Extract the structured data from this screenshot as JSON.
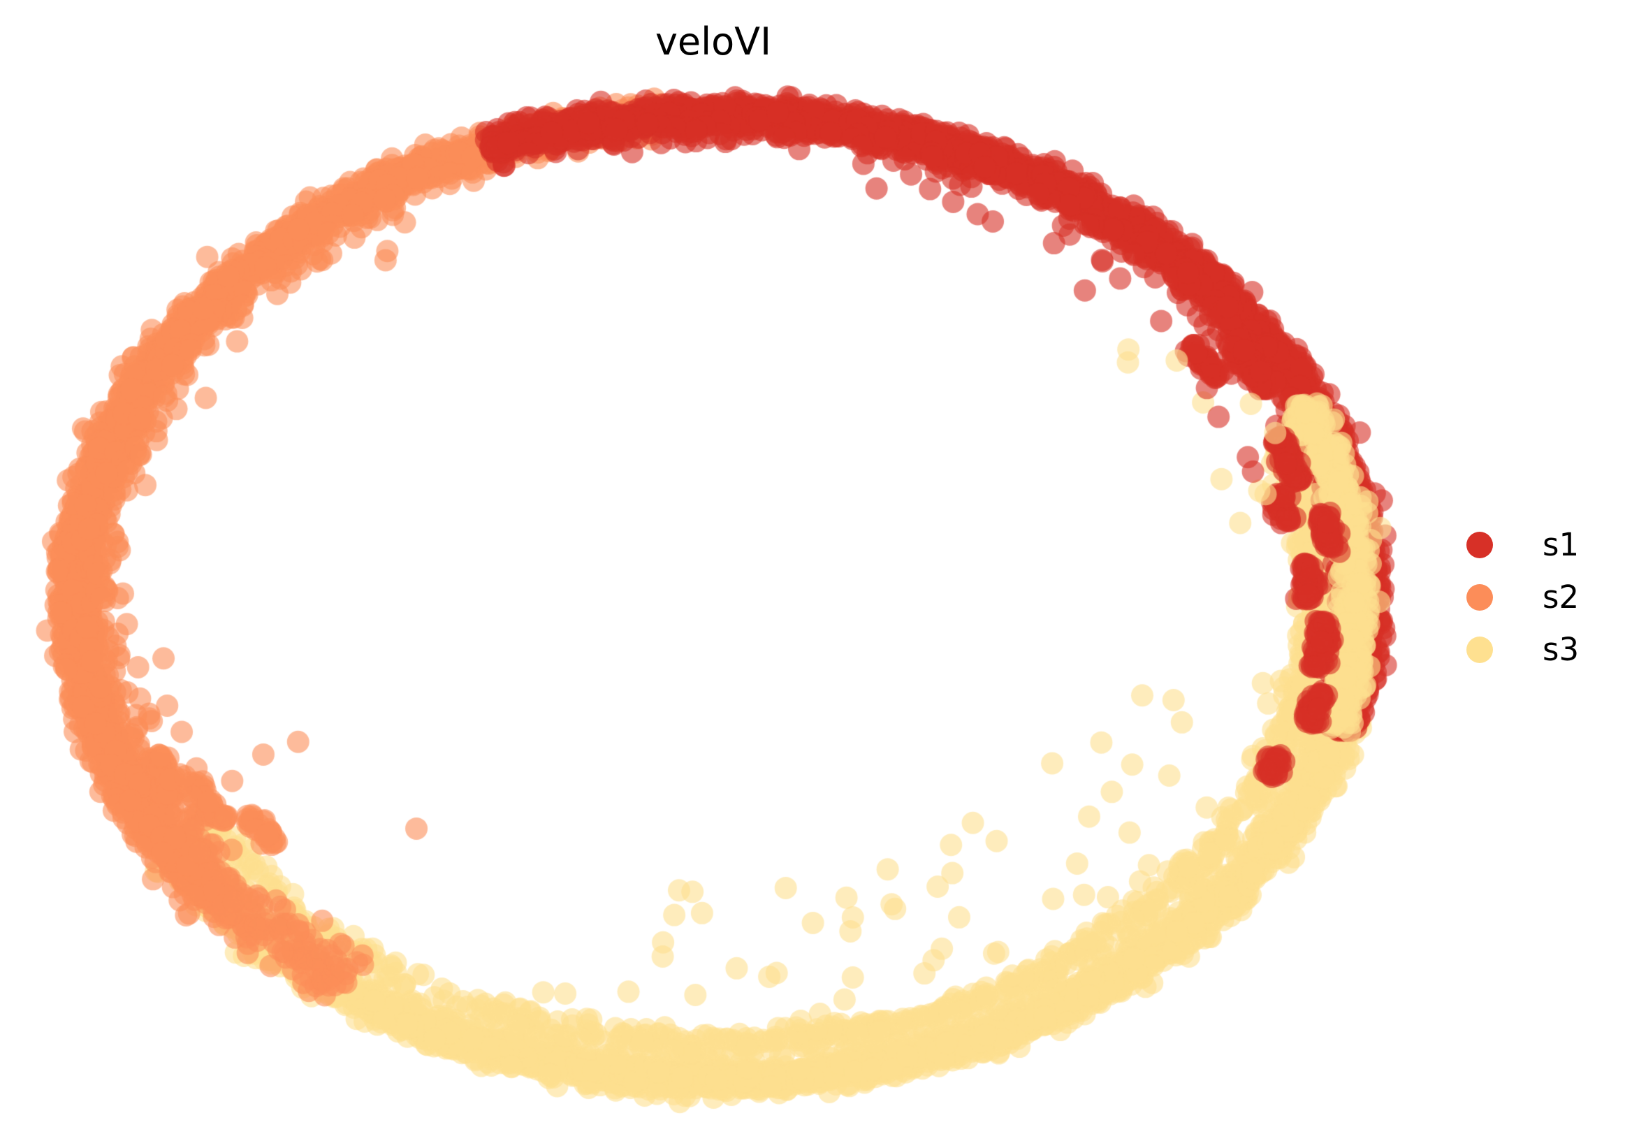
{
  "figure": {
    "title": "veloVI",
    "background": "#ffffff",
    "title_color": "#000000"
  },
  "legend": {
    "items": [
      {
        "label": "s1",
        "color": "#d73027"
      },
      {
        "label": "s2",
        "color": "#fc8d59"
      },
      {
        "label": "s3",
        "color": "#fee090"
      }
    ]
  },
  "chart_data": {
    "type": "scatter",
    "title": "veloVI",
    "legend_position": "right",
    "axes_visible": false,
    "grid": false,
    "description": "2D embedding scatter; ~12k cells forming a closed elliptical cycle, colored by stage: s1 (red) along the top and right, s2 (orange) along the left, s3 (yellow) along the bottom rising up the right side, with mixing at stage boundaries, inner secondary strands and sparse interior outliers.",
    "series": [
      {
        "name": "s1",
        "color": "#d73027"
      },
      {
        "name": "s2",
        "color": "#fc8d59"
      },
      {
        "name": "s3",
        "color": "#fee090"
      }
    ],
    "marker": {
      "radius_px": 16,
      "alpha": 0.6
    },
    "ellipse": {
      "cx": 1030,
      "cy": 855,
      "rx": 920,
      "ry": 690
    },
    "seed": 20240613,
    "bands": [
      {
        "series": "s3",
        "theta_deg": [
          -148,
          -14
        ],
        "n": 2900,
        "r_mean": 1.0,
        "r_sigma": 0.016
      },
      {
        "series": "s3",
        "theta_deg": [
          -150,
          -100
        ],
        "n": 160,
        "r_mean": 0.93,
        "r_sigma": 0.015
      },
      {
        "series": "s3",
        "theta_deg": [
          -100,
          20
        ],
        "n": 600,
        "r_mean": 0.925,
        "r_sigma": 0.012
      },
      {
        "series": "s2",
        "theta_deg": [
          95,
          220
        ],
        "n": 2700,
        "r_mean": 1.0,
        "r_sigma": 0.016
      },
      {
        "series": "s2",
        "theta_deg": [
          110,
          215
        ],
        "n": 260,
        "r_mean": 0.97,
        "r_sigma": 0.022
      },
      {
        "series": "s2",
        "theta_deg": [
          -158,
          -126
        ],
        "n": 240,
        "r_mean": 0.985,
        "r_sigma": 0.03
      },
      {
        "series": "s1",
        "theta_deg": [
          -16,
          111
        ],
        "n": 3600,
        "r_mean": 1.0,
        "r_sigma": 0.015
      },
      {
        "series": "s1",
        "theta_deg": [
          0,
          100
        ],
        "n": 220,
        "r_mean": 0.972,
        "r_sigma": 0.02
      },
      {
        "series": "s3",
        "theta_deg": [
          -16,
          24
        ],
        "n": 450,
        "r_mean": 0.99,
        "r_sigma": 0.014
      }
    ],
    "streaks": [
      {
        "series": "s1",
        "theta_deg": 30,
        "r": 0.955,
        "len_deg": 7,
        "n": 90
      },
      {
        "series": "s1",
        "theta_deg": 18,
        "r": 0.93,
        "len_deg": 6,
        "n": 70
      },
      {
        "series": "s1",
        "theta_deg": 8,
        "r": 0.955,
        "len_deg": 5,
        "n": 60
      },
      {
        "series": "s1",
        "theta_deg": 2,
        "r": 0.915,
        "len_deg": 5,
        "n": 50
      },
      {
        "series": "s1",
        "theta_deg": -6,
        "r": 0.94,
        "len_deg": 6,
        "n": 70
      },
      {
        "series": "s1",
        "theta_deg": -14,
        "r": 0.955,
        "len_deg": 4,
        "n": 50
      },
      {
        "series": "s1",
        "theta_deg": -22,
        "r": 0.93,
        "len_deg": 3,
        "n": 35
      },
      {
        "series": "s1",
        "theta_deg": 33,
        "r": 0.9,
        "len_deg": 5,
        "n": 45
      },
      {
        "series": "s1",
        "theta_deg": 12,
        "r": 0.895,
        "len_deg": 4,
        "n": 40
      },
      {
        "series": "s2",
        "theta_deg": -152,
        "r": 0.9,
        "len_deg": 6,
        "n": 45
      },
      {
        "series": "s2",
        "theta_deg": -146,
        "r": 0.86,
        "len_deg": 5,
        "n": 35
      },
      {
        "series": "s2",
        "theta_deg": -157,
        "r": 0.94,
        "len_deg": 5,
        "n": 40
      }
    ],
    "outliers": [
      {
        "series": "s3",
        "theta_deg": [
          -110,
          -10
        ],
        "r": [
          0.6,
          0.9
        ],
        "n": 55
      },
      {
        "series": "s3",
        "theta_deg": [
          -20,
          40
        ],
        "r": [
          0.8,
          0.93
        ],
        "n": 12
      },
      {
        "series": "s2",
        "theta_deg": [
          120,
          205
        ],
        "r": [
          0.86,
          0.96
        ],
        "n": 16
      },
      {
        "series": "s2",
        "theta_deg": [
          195,
          235
        ],
        "r": [
          0.6,
          0.85
        ],
        "n": 4
      },
      {
        "series": "s1",
        "theta_deg": [
          15,
          80
        ],
        "r": [
          0.85,
          0.96
        ],
        "n": 22
      }
    ]
  }
}
